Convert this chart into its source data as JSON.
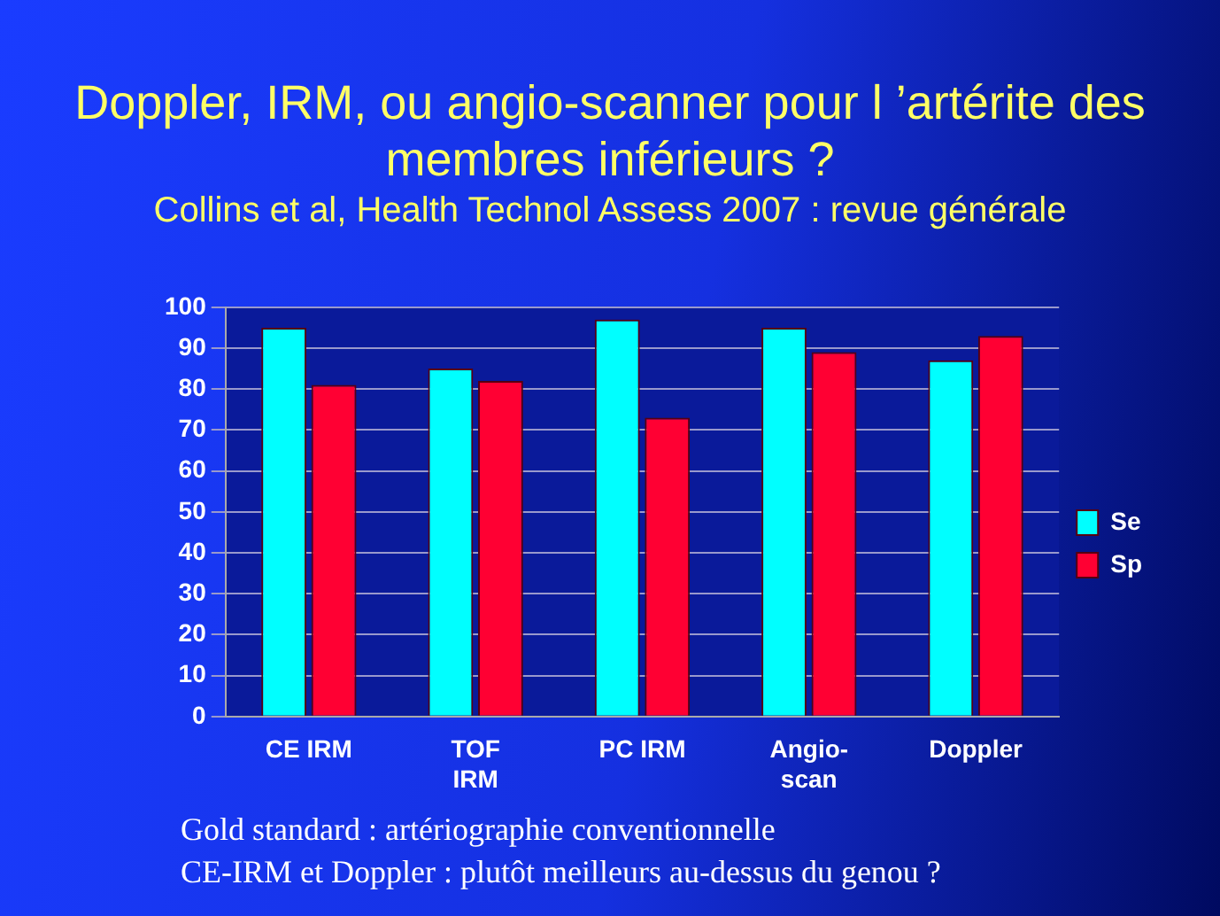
{
  "chart_data": {
    "type": "bar",
    "title": "Doppler, IRM, ou angio-scanner pour l ’artérite des membres inférieurs ?",
    "subtitle": "Collins et al, Health Technol Assess 2007 : revue générale",
    "categories": [
      "CE IRM",
      "TOF\nIRM",
      "PC IRM",
      "Angio-\nscan",
      "Doppler"
    ],
    "series": [
      {
        "name": "Se",
        "color": "#00ffff",
        "values": [
          95,
          85,
          97,
          95,
          87
        ]
      },
      {
        "name": "Sp",
        "color": "#ff0033",
        "values": [
          81,
          82,
          73,
          89,
          93
        ]
      }
    ],
    "ylim": [
      0,
      100
    ],
    "yticks": [
      0,
      10,
      20,
      30,
      40,
      50,
      60,
      70,
      80,
      90,
      100
    ],
    "grid": "y",
    "legend": "right",
    "annotations": [
      "Gold standard : artériographie conventionnelle",
      "CE-IRM et Doppler : plutôt meilleurs au-dessus du genou ?"
    ]
  }
}
